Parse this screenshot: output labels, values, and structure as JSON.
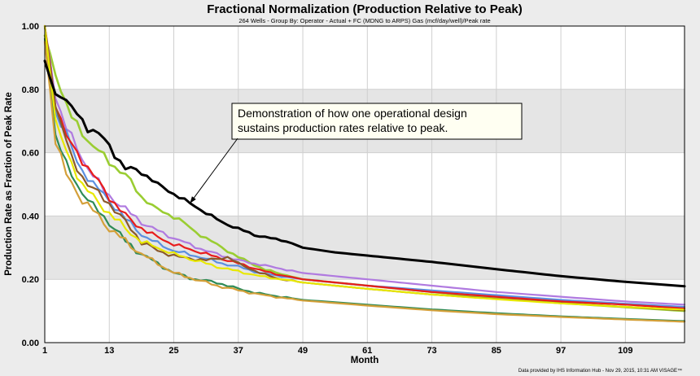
{
  "colors": {
    "page_bg": "#ececec",
    "plot_bg": "#ffffff",
    "band": "#e5e5e5",
    "grid": "#cfcfcf",
    "annotation_bg": "#fffff2"
  },
  "chart_data": {
    "type": "line",
    "title": "Fractional Normalization (Production Relative to Peak)",
    "subtitle": "264 Wells - Group By: Operator - Actual + FC (MDNG to ARPS)  Gas (mcf/day/well)/Peak rate",
    "xlabel": "Month",
    "ylabel": "Production Rate as Fraction of Peak Rate",
    "xlim": [
      1,
      120
    ],
    "ylim": [
      0,
      1
    ],
    "x_ticks": [
      1,
      13,
      25,
      37,
      49,
      61,
      73,
      85,
      97,
      109
    ],
    "y_ticks": [
      "0.00",
      "0.20",
      "0.40",
      "0.60",
      "0.80",
      "1.00"
    ],
    "grid": true,
    "shaded_bands": [
      [
        0.2,
        0.4
      ],
      [
        0.6,
        0.8
      ]
    ],
    "annotation": {
      "lines": [
        "Demonstration of how one operational design",
        "sustains production rates relative to peak."
      ],
      "arrow_target": {
        "x": 28,
        "y": 0.44
      }
    },
    "credit": "Data provided by IHS Information Hub - Nov 29, 2015, 10:31 AM  VISAGE™",
    "series": [
      {
        "color": "#000000",
        "width": 3,
        "d": 120,
        "points": [
          [
            1,
            0.89
          ],
          [
            3,
            0.78
          ],
          [
            4,
            0.79
          ],
          [
            6,
            0.74
          ],
          [
            9,
            0.68
          ],
          [
            11,
            0.66
          ],
          [
            13,
            0.62
          ],
          [
            16,
            0.55
          ],
          [
            19,
            0.54
          ],
          [
            22,
            0.5
          ],
          [
            25,
            0.47
          ],
          [
            28,
            0.44
          ],
          [
            31,
            0.41
          ],
          [
            34,
            0.38
          ],
          [
            37,
            0.36
          ],
          [
            40,
            0.34
          ],
          [
            43,
            0.33
          ],
          [
            46,
            0.32
          ],
          [
            49,
            0.3
          ],
          [
            55,
            0.285
          ],
          [
            61,
            0.275
          ],
          [
            73,
            0.255
          ],
          [
            85,
            0.232
          ],
          [
            97,
            0.21
          ],
          [
            109,
            0.192
          ],
          [
            120,
            0.178
          ]
        ]
      },
      {
        "color": "#9acd32",
        "width": 2.6,
        "d": 140,
        "points": [
          [
            1,
            0.97
          ],
          [
            4,
            0.8
          ],
          [
            6,
            0.71
          ],
          [
            9,
            0.64
          ],
          [
            13,
            0.57
          ],
          [
            16,
            0.53
          ],
          [
            19,
            0.46
          ],
          [
            22,
            0.42
          ],
          [
            26,
            0.39
          ],
          [
            29,
            0.35
          ],
          [
            33,
            0.31
          ],
          [
            37,
            0.27
          ],
          [
            42,
            0.23
          ],
          [
            49,
            0.2
          ],
          [
            61,
            0.18
          ],
          [
            73,
            0.16
          ],
          [
            85,
            0.14
          ],
          [
            97,
            0.125
          ],
          [
            109,
            0.112
          ],
          [
            120,
            0.1
          ]
        ]
      },
      {
        "color": "#b07ae0",
        "width": 2.2,
        "d": 180,
        "points": [
          [
            1,
            1.0
          ],
          [
            3,
            0.78
          ],
          [
            5,
            0.68
          ],
          [
            8,
            0.58
          ],
          [
            12,
            0.48
          ],
          [
            16,
            0.42
          ],
          [
            20,
            0.37
          ],
          [
            25,
            0.33
          ],
          [
            31,
            0.29
          ],
          [
            37,
            0.26
          ],
          [
            43,
            0.24
          ],
          [
            49,
            0.22
          ],
          [
            61,
            0.2
          ],
          [
            73,
            0.18
          ],
          [
            85,
            0.16
          ],
          [
            97,
            0.145
          ],
          [
            109,
            0.13
          ],
          [
            120,
            0.12
          ]
        ]
      },
      {
        "color": "#5b8fe0",
        "width": 2.2,
        "d": 190,
        "points": [
          [
            1,
            1.0
          ],
          [
            3,
            0.73
          ],
          [
            5,
            0.66
          ],
          [
            7,
            0.57
          ],
          [
            10,
            0.5
          ],
          [
            13,
            0.45
          ],
          [
            16,
            0.39
          ],
          [
            20,
            0.33
          ],
          [
            25,
            0.29
          ],
          [
            30,
            0.27
          ],
          [
            34,
            0.25
          ],
          [
            37,
            0.24
          ],
          [
            41,
            0.22
          ],
          [
            45,
            0.21
          ],
          [
            49,
            0.2
          ],
          [
            61,
            0.18
          ],
          [
            73,
            0.165
          ],
          [
            85,
            0.15
          ],
          [
            97,
            0.135
          ],
          [
            109,
            0.123
          ],
          [
            120,
            0.113
          ]
        ]
      },
      {
        "color": "#e81c1c",
        "width": 2.2,
        "d": 170,
        "points": [
          [
            1,
            1.0
          ],
          [
            3,
            0.76
          ],
          [
            5,
            0.65
          ],
          [
            7,
            0.6
          ],
          [
            10,
            0.53
          ],
          [
            13,
            0.46
          ],
          [
            16,
            0.4
          ],
          [
            20,
            0.35
          ],
          [
            25,
            0.31
          ],
          [
            31,
            0.28
          ],
          [
            37,
            0.25
          ],
          [
            43,
            0.22
          ],
          [
            49,
            0.2
          ],
          [
            61,
            0.18
          ],
          [
            73,
            0.16
          ],
          [
            85,
            0.145
          ],
          [
            97,
            0.13
          ],
          [
            109,
            0.12
          ],
          [
            120,
            0.108
          ]
        ]
      },
      {
        "color": "#8b5a2b",
        "width": 2.2,
        "d": 200,
        "points": [
          [
            1,
            1.0
          ],
          [
            3,
            0.75
          ],
          [
            6,
            0.58
          ],
          [
            9,
            0.5
          ],
          [
            13,
            0.44
          ],
          [
            16,
            0.38
          ],
          [
            19,
            0.32
          ],
          [
            22,
            0.29
          ],
          [
            26,
            0.27
          ],
          [
            31,
            0.26
          ],
          [
            35,
            0.27
          ],
          [
            37,
            0.25
          ],
          [
            41,
            0.22
          ],
          [
            45,
            0.2
          ],
          [
            49,
            0.19
          ],
          [
            61,
            0.17
          ],
          [
            73,
            0.152
          ],
          [
            85,
            0.138
          ],
          [
            97,
            0.125
          ],
          [
            109,
            0.113
          ],
          [
            120,
            0.102
          ]
        ]
      },
      {
        "color": "#2e8b57",
        "width": 2.2,
        "d": 220,
        "points": [
          [
            1,
            0.96
          ],
          [
            3,
            0.66
          ],
          [
            5,
            0.56
          ],
          [
            7,
            0.5
          ],
          [
            10,
            0.43
          ],
          [
            13,
            0.38
          ],
          [
            16,
            0.32
          ],
          [
            19,
            0.28
          ],
          [
            22,
            0.25
          ],
          [
            25,
            0.22
          ],
          [
            29,
            0.2
          ],
          [
            33,
            0.19
          ],
          [
            37,
            0.17
          ],
          [
            41,
            0.155
          ],
          [
            45,
            0.145
          ],
          [
            49,
            0.135
          ],
          [
            61,
            0.12
          ],
          [
            73,
            0.105
          ],
          [
            85,
            0.093
          ],
          [
            97,
            0.083
          ],
          [
            109,
            0.075
          ],
          [
            120,
            0.068
          ]
        ]
      },
      {
        "color": "#d4a03a",
        "width": 2.2,
        "d": 160,
        "points": [
          [
            1,
            0.95
          ],
          [
            3,
            0.64
          ],
          [
            5,
            0.53
          ],
          [
            8,
            0.45
          ],
          [
            11,
            0.4
          ],
          [
            13,
            0.36
          ],
          [
            16,
            0.32
          ],
          [
            19,
            0.28
          ],
          [
            22,
            0.25
          ],
          [
            25,
            0.22
          ],
          [
            29,
            0.2
          ],
          [
            33,
            0.18
          ],
          [
            37,
            0.165
          ],
          [
            41,
            0.152
          ],
          [
            45,
            0.142
          ],
          [
            49,
            0.133
          ],
          [
            61,
            0.117
          ],
          [
            73,
            0.102
          ],
          [
            85,
            0.09
          ],
          [
            97,
            0.081
          ],
          [
            109,
            0.073
          ],
          [
            120,
            0.066
          ]
        ]
      },
      {
        "color": "#e8e800",
        "width": 2.2,
        "d": 150,
        "points": [
          [
            1,
            1.0
          ],
          [
            3,
            0.7
          ],
          [
            5,
            0.6
          ],
          [
            8,
            0.5
          ],
          [
            11,
            0.44
          ],
          [
            13,
            0.41
          ],
          [
            16,
            0.36
          ],
          [
            19,
            0.32
          ],
          [
            22,
            0.3
          ],
          [
            25,
            0.28
          ],
          [
            29,
            0.26
          ],
          [
            33,
            0.24
          ],
          [
            37,
            0.225
          ],
          [
            41,
            0.21
          ],
          [
            45,
            0.2
          ],
          [
            49,
            0.19
          ],
          [
            61,
            0.17
          ],
          [
            73,
            0.152
          ],
          [
            85,
            0.137
          ],
          [
            97,
            0.124
          ],
          [
            109,
            0.113
          ],
          [
            120,
            0.104
          ]
        ]
      }
    ]
  }
}
